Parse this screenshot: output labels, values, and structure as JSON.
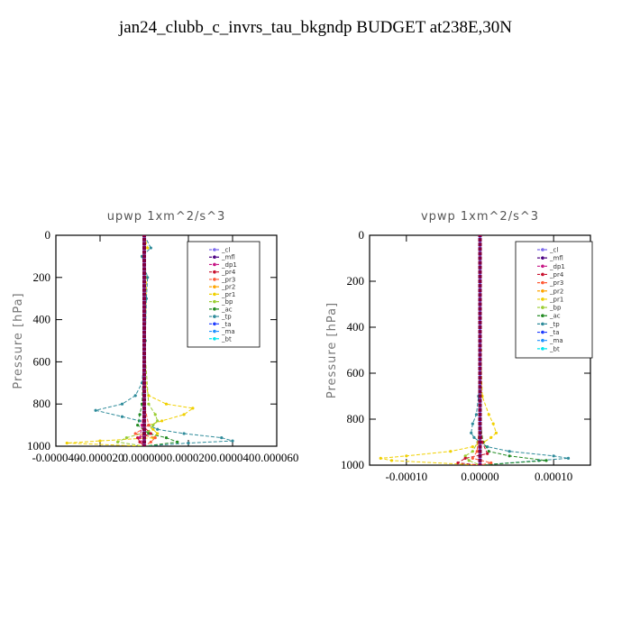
{
  "title": "jan24_clubb_c_invrs_tau_bkgndp  BUDGET at238E,30N",
  "legend_entries": [
    "_cl",
    "_mfl",
    "_dp1",
    "_pr4",
    "_pr3",
    "_pr2",
    "_pr1",
    "_bp",
    "_ac",
    "_tp",
    "_ta",
    "_ma",
    "_bt"
  ],
  "colors": {
    "_cl": "#7b68ee",
    "_mfl": "#4b0082",
    "_dp1": "#c71585",
    "_pr4": "#c8102e",
    "_pr3": "#ff5a36",
    "_pr2": "#ffa500",
    "_pr1": "#f0d000",
    "_bp": "#9acd32",
    "_ac": "#228b22",
    "_tp": "#2e8b9a",
    "_ta": "#1e3cff",
    "_ma": "#1e90ff",
    "_bt": "#00e5ee"
  },
  "chart_data": [
    {
      "type": "line",
      "title": "upwp  1xm^2/s^3",
      "ylabel": "Pressure [hPa]",
      "ylim": [
        1000,
        0
      ],
      "xlim": [
        -4e-05,
        6e-05
      ],
      "xticks": [
        -4e-05,
        -2e-05,
        0.0,
        2e-05,
        4e-05,
        6e-05
      ],
      "xtick_labels": [
        "-0.000040",
        "-0.000020",
        "0.000000",
        "0.000020",
        "0.000040",
        "0.000060"
      ],
      "yticks": [
        0,
        200,
        400,
        600,
        800,
        1000
      ],
      "ytick_labels": [
        "0",
        "200",
        "400",
        "600",
        "800",
        "1000"
      ],
      "legend_position": "top-right",
      "series": [
        {
          "name": "_pr1",
          "y": [
            0,
            60,
            100,
            200,
            300,
            500,
            700,
            760,
            800,
            820,
            850,
            880,
            900,
            920,
            940,
            960,
            975,
            985,
            1000
          ],
          "x": [
            0,
            1.5e-06,
            -1e-06,
            1.2e-06,
            8e-07,
            5e-07,
            5e-07,
            2e-06,
            1e-05,
            2.2e-05,
            1.8e-05,
            8e-06,
            2e-06,
            4e-06,
            6e-06,
            4e-06,
            -2e-05,
            -3.5e-05,
            0
          ]
        },
        {
          "name": "_tp",
          "y": [
            0,
            60,
            100,
            200,
            300,
            500,
            700,
            760,
            800,
            830,
            860,
            880,
            900,
            920,
            940,
            960,
            975,
            985,
            1000
          ],
          "x": [
            0,
            3e-06,
            -1e-06,
            1.5e-06,
            1e-06,
            5e-07,
            -1e-06,
            -4e-06,
            -1e-05,
            -2.2e-05,
            -1e-05,
            -2e-06,
            2e-06,
            6e-06,
            1.8e-05,
            3.5e-05,
            4e-05,
            2e-05,
            0
          ]
        },
        {
          "name": "_bp",
          "y": [
            0,
            500,
            800,
            850,
            880,
            900,
            930,
            960,
            980,
            1000
          ],
          "x": [
            0,
            0,
            2e-06,
            5e-06,
            6e-06,
            4e-06,
            2e-06,
            -8e-06,
            -1.2e-05,
            0
          ]
        },
        {
          "name": "_ac",
          "y": [
            0,
            500,
            800,
            850,
            900,
            940,
            960,
            980,
            1000
          ],
          "x": [
            0,
            0,
            -1e-06,
            -2e-06,
            -3e-06,
            2e-06,
            1e-05,
            1.5e-05,
            0
          ]
        },
        {
          "name": "_pr3",
          "y": [
            0,
            800,
            900,
            940,
            960,
            980,
            1000
          ],
          "x": [
            0,
            0,
            2e-06,
            -4e-06,
            5e-06,
            3e-06,
            0
          ]
        },
        {
          "name": "_pr4",
          "y": [
            0,
            800,
            900,
            940,
            960,
            980,
            1000
          ],
          "x": [
            0,
            0,
            -1e-06,
            3e-06,
            -3e-06,
            -2e-06,
            0
          ]
        },
        {
          "name": "_dp1",
          "y": [
            0,
            800,
            900,
            960,
            1000
          ],
          "x": [
            0,
            0,
            -1e-06,
            -2e-06,
            0
          ]
        },
        {
          "name": "_mfl",
          "y": [
            0,
            1000
          ],
          "x": [
            0,
            0
          ]
        },
        {
          "name": "_cl",
          "y": [
            0,
            1000
          ],
          "x": [
            0,
            0
          ]
        }
      ]
    },
    {
      "type": "line",
      "title": "vpwp  1xm^2/s^3",
      "ylabel": "Pressure [hPa]",
      "ylim": [
        1000,
        0
      ],
      "xlim": [
        -0.00015,
        0.00015
      ],
      "xticks": [
        -0.0001,
        0.0,
        0.0001
      ],
      "xtick_labels": [
        "-0.00010",
        "0.00000",
        "0.00010"
      ],
      "yticks": [
        0,
        200,
        400,
        600,
        800,
        1000
      ],
      "ytick_labels": [
        "0",
        "200",
        "400",
        "600",
        "800",
        "1000"
      ],
      "legend_position": "top-right",
      "series": [
        {
          "name": "_pr1",
          "y": [
            0,
            500,
            700,
            780,
            820,
            860,
            880,
            900,
            920,
            940,
            960,
            970,
            980,
            1000
          ],
          "x": [
            0,
            1e-06,
            3e-06,
            1.2e-05,
            1.8e-05,
            2.2e-05,
            1.5e-05,
            5e-06,
            -1e-05,
            -4e-05,
            -0.0001,
            -0.000135,
            -0.00012,
            0
          ]
        },
        {
          "name": "_tp",
          "y": [
            0,
            500,
            700,
            780,
            820,
            860,
            880,
            900,
            920,
            940,
            960,
            970,
            980,
            1000
          ],
          "x": [
            0,
            0,
            -2e-06,
            -5e-06,
            -1e-05,
            -1.2e-05,
            -8e-06,
            0,
            1e-05,
            4e-05,
            0.0001,
            0.00012,
            8e-05,
            0
          ]
        },
        {
          "name": "_ac",
          "y": [
            0,
            800,
            900,
            940,
            960,
            980,
            1000
          ],
          "x": [
            0,
            0,
            4e-06,
            1.2e-05,
            4e-05,
            9e-05,
            0
          ]
        },
        {
          "name": "_bp",
          "y": [
            0,
            800,
            900,
            940,
            960,
            980,
            1000
          ],
          "x": [
            0,
            0,
            -3e-06,
            -1e-05,
            -2e-05,
            -1.5e-05,
            0
          ]
        },
        {
          "name": "_pr4",
          "y": [
            0,
            800,
            900,
            950,
            970,
            990,
            1000
          ],
          "x": [
            0,
            0,
            3e-06,
            1e-05,
            -2e-05,
            -3e-05,
            0
          ]
        },
        {
          "name": "_pr3",
          "y": [
            0,
            800,
            940,
            970,
            990,
            1000
          ],
          "x": [
            0,
            0,
            -4e-06,
            -1e-05,
            1.5e-05,
            0
          ]
        },
        {
          "name": "_dp1",
          "y": [
            0,
            1000
          ],
          "x": [
            0,
            0
          ]
        },
        {
          "name": "_mfl",
          "y": [
            0,
            1000
          ],
          "x": [
            0,
            0
          ]
        },
        {
          "name": "_cl",
          "y": [
            0,
            1000
          ],
          "x": [
            0,
            0
          ]
        }
      ]
    }
  ]
}
